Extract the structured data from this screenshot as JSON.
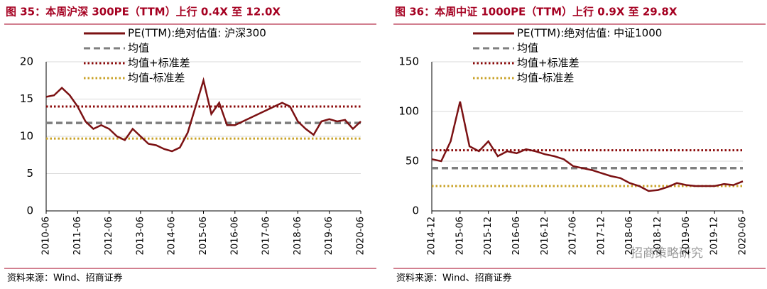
{
  "chart_data": [
    {
      "type": "line",
      "title": "图 35：本周沪深 300PE（TTM）上行 0.4X 至 12.0X",
      "source": "资料来源：Wind、招商证券",
      "categories": [
        "2010-06",
        null,
        null,
        null,
        "2011-06",
        null,
        null,
        null,
        "2012-06",
        null,
        null,
        null,
        "2013-06",
        null,
        null,
        null,
        "2014-06",
        null,
        null,
        null,
        "2015-06",
        null,
        null,
        null,
        "2016-06",
        null,
        null,
        null,
        "2017-06",
        null,
        null,
        null,
        "2018-06",
        null,
        null,
        null,
        "2019-06",
        null,
        null,
        null,
        "2020-06"
      ],
      "series": [
        {
          "name": "PE(TTM):绝对估值: 沪深300",
          "color": "#7b1113",
          "values": [
            15.3,
            15.5,
            16.5,
            15.5,
            14.0,
            12.0,
            11.0,
            11.5,
            11.0,
            10.0,
            9.5,
            11.0,
            10.0,
            9.0,
            8.8,
            8.3,
            8.0,
            8.5,
            10.5,
            14.0,
            17.5,
            13.0,
            14.5,
            11.5,
            11.5,
            12.0,
            12.5,
            13.0,
            13.5,
            14.0,
            14.5,
            14.0,
            12.0,
            11.0,
            10.2,
            12.0,
            12.3,
            12.0,
            12.2,
            11.0,
            12.0
          ]
        }
      ],
      "hlines": [
        {
          "name": "均值",
          "color": "#7f7f7f",
          "style": "dashed",
          "value": 11.8
        },
        {
          "name": "均值+标准差",
          "color": "#8b0a0a",
          "style": "dotted",
          "value": 14.0
        },
        {
          "name": "均值-标准差",
          "color": "#c9a227",
          "style": "dotted",
          "value": 9.7
        }
      ],
      "ylim": [
        0,
        20
      ],
      "yticks": [
        0,
        5,
        10,
        15,
        20
      ],
      "grid": true
    },
    {
      "type": "line",
      "title": "图 36：本周中证 1000PE（TTM）上行 0.9X 至 29.8X",
      "source": "资料来源：Wind、招商证券",
      "watermark": "招商策略研究",
      "categories": [
        "2014-12",
        null,
        null,
        "2015-06",
        null,
        null,
        "2015-12",
        null,
        null,
        "2016-06",
        null,
        null,
        "2016-12",
        null,
        null,
        "2017-06",
        null,
        null,
        "2017-12",
        null,
        null,
        "2018-06",
        null,
        null,
        "2018-12",
        null,
        null,
        "2019-06",
        null,
        null,
        "2019-12",
        null,
        null,
        "2020-06"
      ],
      "series": [
        {
          "name": "PE(TTM):绝对估值: 中证1000",
          "color": "#7b1113",
          "values": [
            52,
            50,
            70,
            110,
            65,
            60,
            70,
            55,
            60,
            58,
            62,
            60,
            57,
            55,
            52,
            45,
            43,
            41,
            38,
            35,
            33,
            28,
            25,
            20,
            21,
            24,
            28,
            26,
            25,
            25,
            25,
            27,
            26,
            29.8
          ]
        }
      ],
      "hlines": [
        {
          "name": "均值",
          "color": "#7f7f7f",
          "style": "dashed",
          "value": 43
        },
        {
          "name": "均值+标准差",
          "color": "#8b0a0a",
          "style": "dotted",
          "value": 61
        },
        {
          "name": "均值-标准差",
          "color": "#c9a227",
          "style": "dotted",
          "value": 25
        }
      ],
      "ylim": [
        0,
        150
      ],
      "yticks": [
        0,
        50,
        100,
        150
      ],
      "grid": true
    }
  ]
}
